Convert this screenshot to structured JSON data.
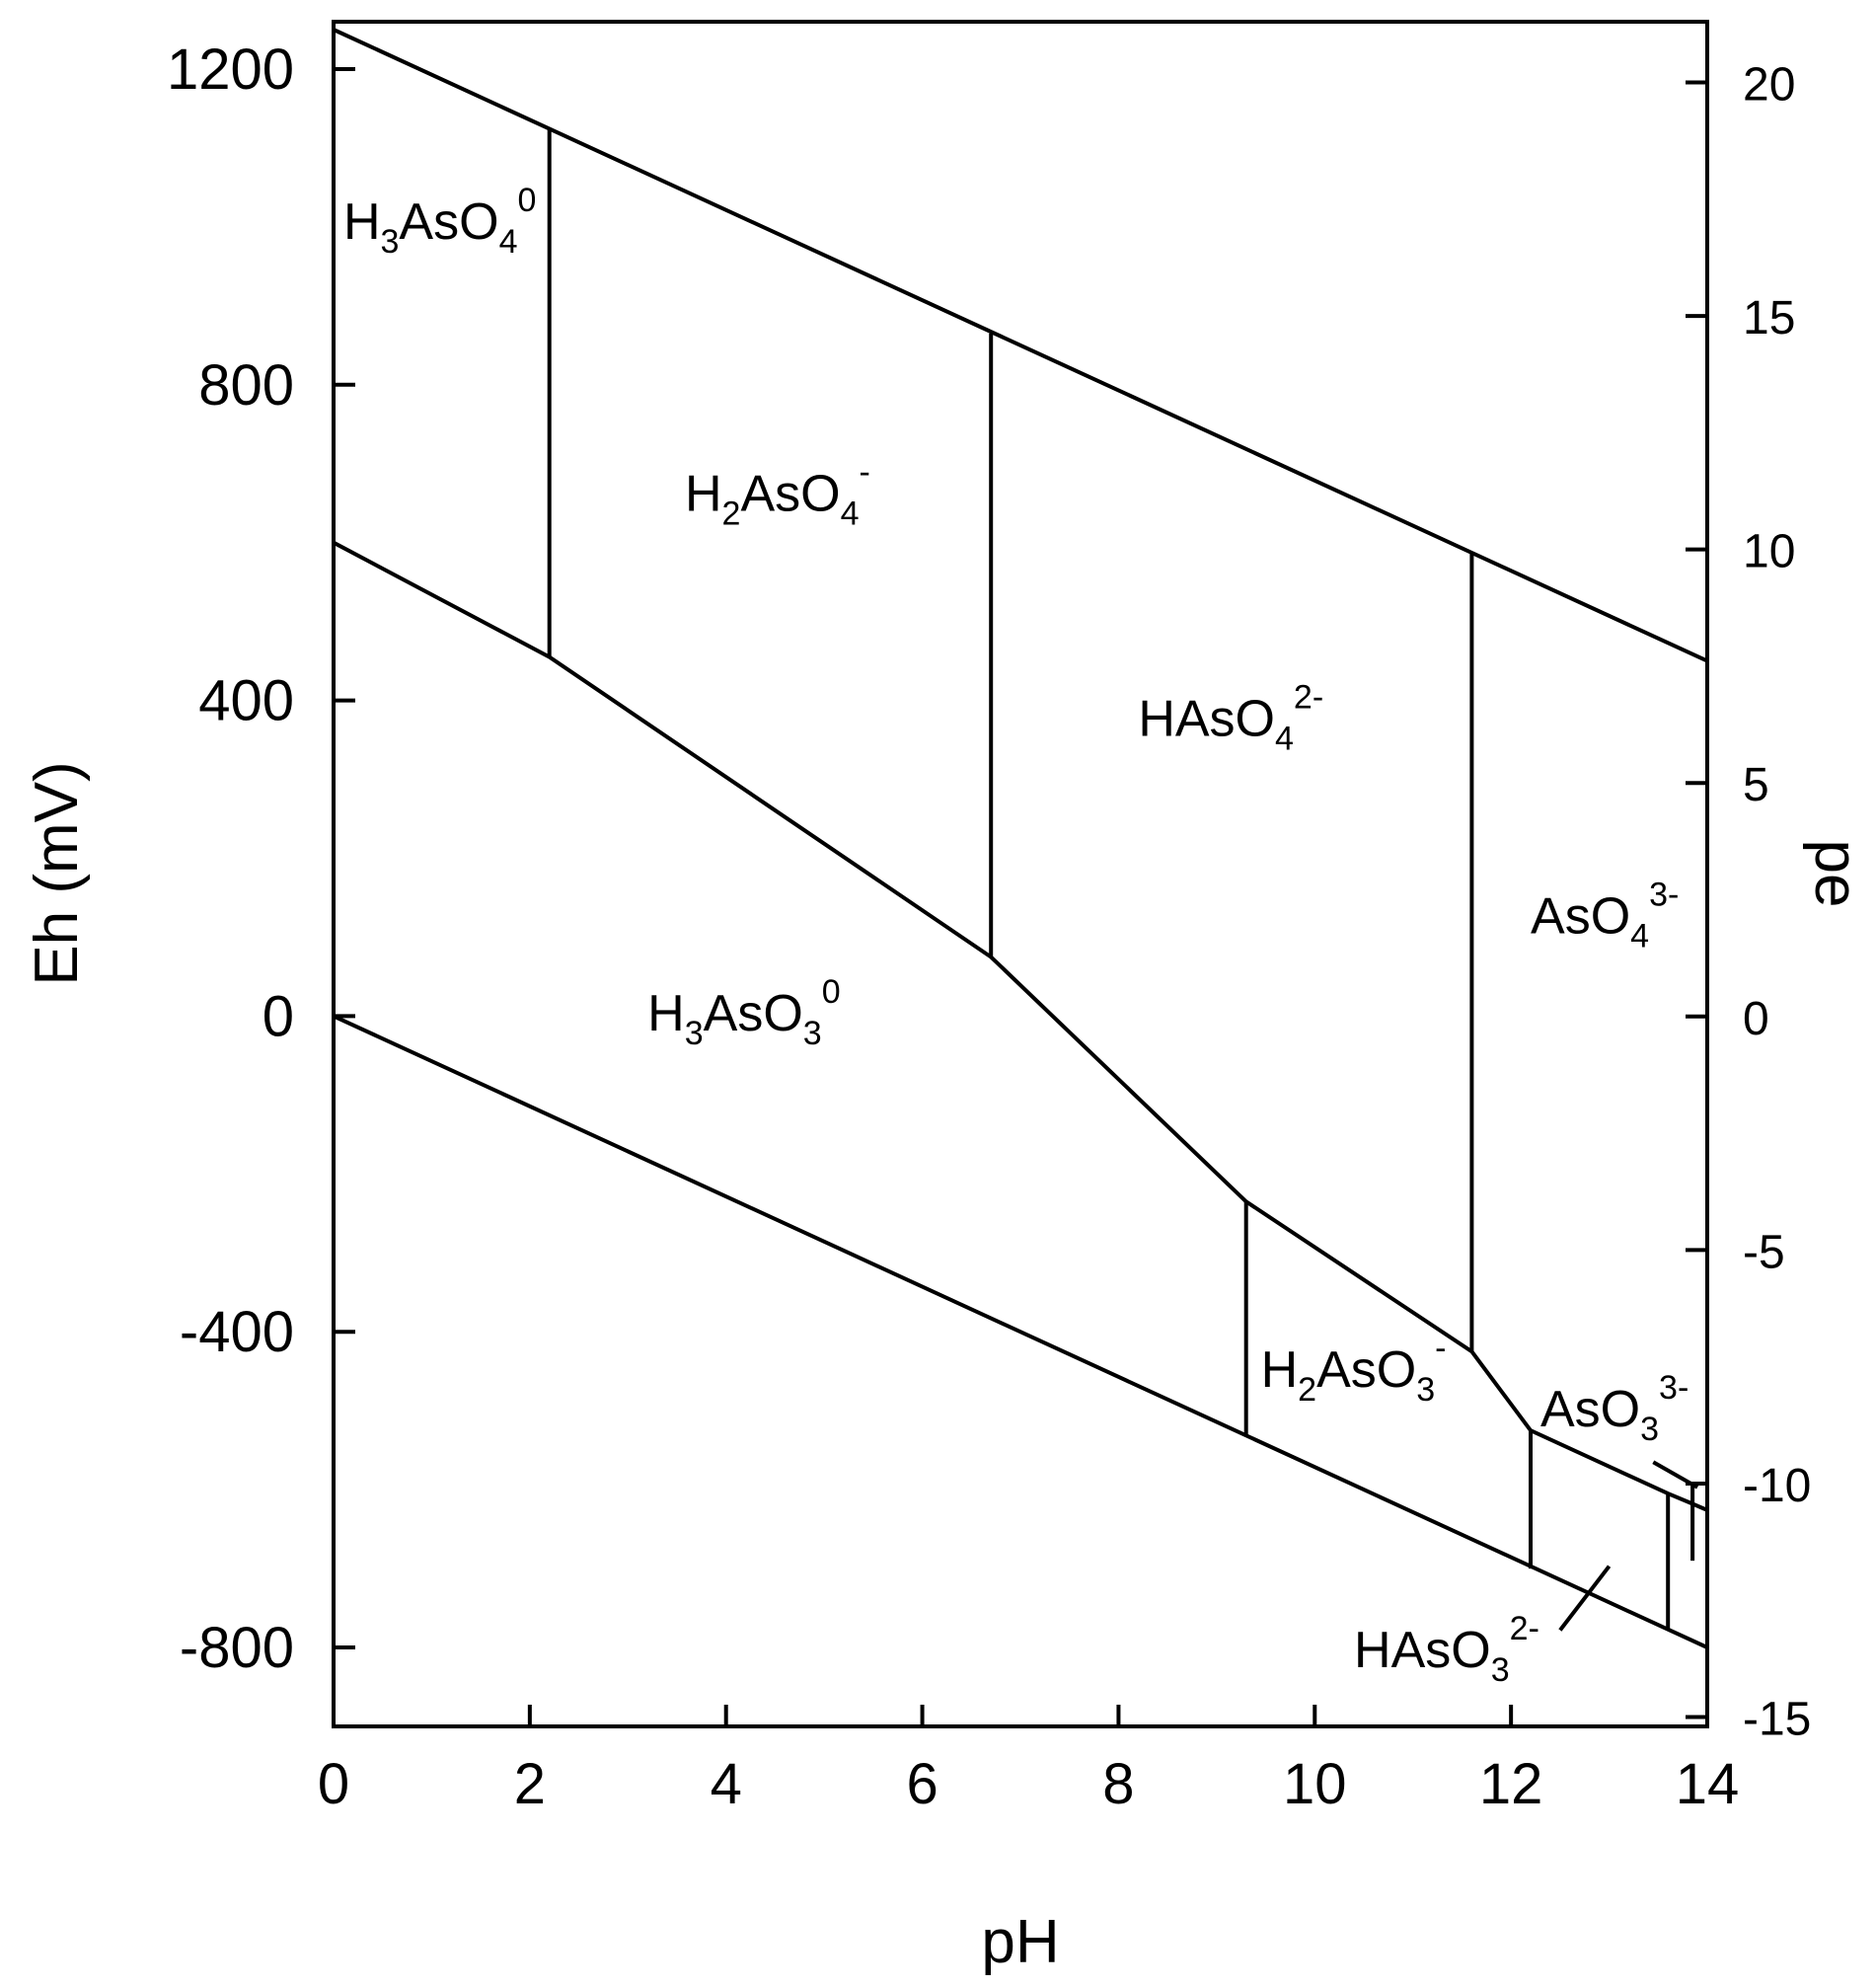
{
  "chart_data": {
    "type": "line",
    "title": "",
    "xlabel": "pH",
    "ylabel": "Eh (mV)",
    "y2label": "pe",
    "xlim": [
      0,
      14
    ],
    "ylim": [
      -900,
      1260
    ],
    "y2lim": [
      -15.2,
      21.3
    ],
    "x_ticks": [
      0,
      2,
      4,
      6,
      8,
      10,
      12,
      14
    ],
    "y_ticks": [
      -800,
      -400,
      0,
      400,
      800,
      1200
    ],
    "y2_ticks": [
      -15,
      -10,
      -5,
      0,
      5,
      10,
      15,
      20
    ],
    "grid": false,
    "series": [
      {
        "points": [
          [
            0,
            1250
          ],
          [
            14,
            450
          ]
        ]
      },
      {
        "points": [
          [
            0,
            600
          ],
          [
            2.2,
            455
          ],
          [
            6.7,
            75
          ],
          [
            9.3,
            -235
          ],
          [
            11.6,
            -425
          ],
          [
            12.2,
            -525
          ],
          [
            13.6,
            -605
          ],
          [
            13.85,
            -618
          ],
          [
            14,
            -626
          ]
        ]
      },
      {
        "points": [
          [
            0,
            0
          ],
          [
            14,
            -800
          ]
        ]
      },
      {
        "points": [
          [
            2.2,
            455
          ],
          [
            2.2,
            1125
          ]
        ]
      },
      {
        "points": [
          [
            6.7,
            75
          ],
          [
            6.7,
            865
          ]
        ]
      },
      {
        "points": [
          [
            11.6,
            -425
          ],
          [
            11.6,
            588
          ]
        ]
      },
      {
        "points": [
          [
            9.3,
            -235
          ],
          [
            9.3,
            -530
          ]
        ]
      },
      {
        "points": [
          [
            12.2,
            -525
          ],
          [
            12.2,
            -700
          ]
        ]
      },
      {
        "points": [
          [
            13.6,
            -605
          ],
          [
            13.6,
            -778
          ]
        ]
      },
      {
        "points": [
          [
            13.85,
            -595
          ],
          [
            13.85,
            -690
          ]
        ]
      },
      {
        "points": [
          [
            13.45,
            -565
          ],
          [
            13.9,
            -597
          ]
        ]
      },
      {
        "points": [
          [
            13.0,
            -697
          ],
          [
            12.5,
            -778
          ]
        ]
      }
    ],
    "labels": [
      {
        "text": "H",
        "sub": "3",
        "mid": "AsO",
        "sub2": "4",
        "sup": "0",
        "x": 0.1,
        "y": 985
      },
      {
        "text": "H",
        "sub": "2",
        "mid": "AsO",
        "sub2": "4",
        "sup": "-",
        "x": 3.58,
        "y": 640
      },
      {
        "text": "HAsO",
        "sub": "4",
        "mid": "",
        "sub2": "",
        "sup": "2-",
        "x": 8.2,
        "y": 355
      },
      {
        "text": "AsO",
        "sub": "4",
        "mid": "",
        "sub2": "",
        "sup": "3-",
        "x": 12.2,
        "y": 105
      },
      {
        "text": "H",
        "sub": "3",
        "mid": "AsO",
        "sub2": "3",
        "sup": "0",
        "x": 3.2,
        "y": -18
      },
      {
        "text": "H",
        "sub": "2",
        "mid": "AsO",
        "sub2": "3",
        "sup": "-",
        "x": 9.45,
        "y": -470
      },
      {
        "text": "AsO",
        "sub": "3",
        "mid": "",
        "sub2": "",
        "sup": "3-",
        "x": 12.3,
        "y": -520
      },
      {
        "text": "HAsO",
        "sub": "3",
        "mid": "",
        "sub2": "",
        "sup": "2-",
        "x": 10.4,
        "y": -825
      }
    ]
  }
}
